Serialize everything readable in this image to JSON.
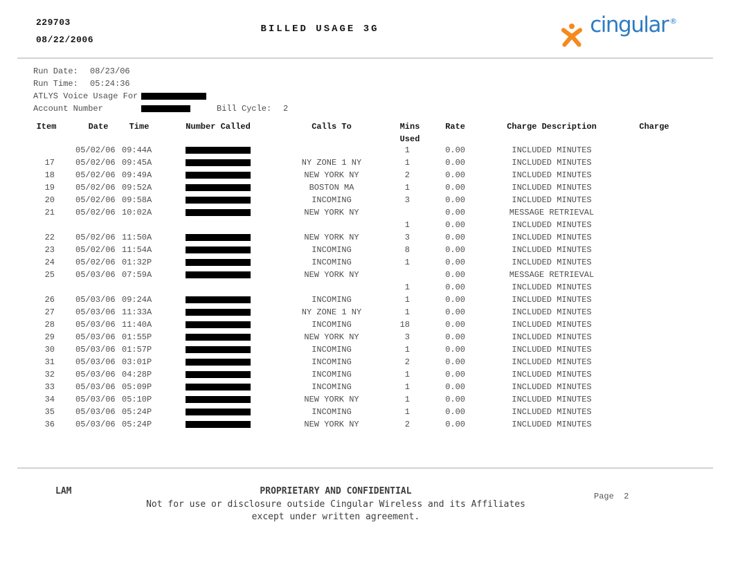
{
  "header": {
    "doc_number": "229703",
    "doc_date": "08/22/2006",
    "title": "BILLED USAGE 3G",
    "brand": {
      "wordmark": "cingular",
      "registered": "®",
      "jack_icon": "cingular-jack-icon",
      "orange": "#f6891e",
      "blue": "#2d7cc1"
    }
  },
  "info": {
    "run_date_label": "Run Date:",
    "run_date": "08/23/06",
    "run_time_label": "Run Time:",
    "run_time": "05:24:36",
    "usage_for_label": "ATLYS Voice Usage For",
    "account_label": "Account Number",
    "bill_cycle_label": "Bill Cycle:",
    "bill_cycle": "2"
  },
  "table": {
    "headers": {
      "item": "Item",
      "date": "Date",
      "time": "Time",
      "number_called": "Number Called",
      "calls_to": "Calls To",
      "mins_line1": "Mins",
      "mins_line2": "Used",
      "rate": "Rate",
      "charge_description": "Charge Description",
      "charge": "Charge"
    },
    "rows": [
      {
        "item": "",
        "date": "05/02/06",
        "time": "09:44A",
        "redacted": true,
        "calls_to": "",
        "mins": "1",
        "rate": "0.00",
        "desc": "INCLUDED MINUTES"
      },
      {
        "item": "17",
        "date": "05/02/06",
        "time": "09:45A",
        "redacted": true,
        "calls_to": "NY ZONE 1 NY",
        "mins": "1",
        "rate": "0.00",
        "desc": "INCLUDED MINUTES"
      },
      {
        "item": "18",
        "date": "05/02/06",
        "time": "09:49A",
        "redacted": true,
        "calls_to": "NEW YORK NY",
        "mins": "2",
        "rate": "0.00",
        "desc": "INCLUDED MINUTES"
      },
      {
        "item": "19",
        "date": "05/02/06",
        "time": "09:52A",
        "redacted": true,
        "calls_to": "BOSTON MA",
        "mins": "1",
        "rate": "0.00",
        "desc": "INCLUDED MINUTES"
      },
      {
        "item": "20",
        "date": "05/02/06",
        "time": "09:58A",
        "redacted": true,
        "calls_to": "INCOMING",
        "mins": "3",
        "rate": "0.00",
        "desc": "INCLUDED MINUTES"
      },
      {
        "item": "21",
        "date": "05/02/06",
        "time": "10:02A",
        "redacted": true,
        "calls_to": "NEW YORK NY",
        "mins": "",
        "rate": "0.00",
        "desc": "MESSAGE RETRIEVAL"
      },
      {
        "item": "",
        "date": "",
        "time": "",
        "redacted": false,
        "calls_to": "",
        "mins": "1",
        "rate": "0.00",
        "desc": "INCLUDED MINUTES"
      },
      {
        "item": "22",
        "date": "05/02/06",
        "time": "11:50A",
        "redacted": true,
        "calls_to": "NEW YORK NY",
        "mins": "3",
        "rate": "0.00",
        "desc": "INCLUDED MINUTES"
      },
      {
        "item": "23",
        "date": "05/02/06",
        "time": "11:54A",
        "redacted": true,
        "calls_to": "INCOMING",
        "mins": "8",
        "rate": "0.00",
        "desc": "INCLUDED MINUTES"
      },
      {
        "item": "24",
        "date": "05/02/06",
        "time": "01:32P",
        "redacted": true,
        "calls_to": "INCOMING",
        "mins": "1",
        "rate": "0.00",
        "desc": "INCLUDED MINUTES"
      },
      {
        "item": "25",
        "date": "05/03/06",
        "time": "07:59A",
        "redacted": true,
        "calls_to": "NEW YORK NY",
        "mins": "",
        "rate": "0.00",
        "desc": "MESSAGE RETRIEVAL"
      },
      {
        "item": "",
        "date": "",
        "time": "",
        "redacted": false,
        "calls_to": "",
        "mins": "1",
        "rate": "0.00",
        "desc": "INCLUDED MINUTES"
      },
      {
        "item": "26",
        "date": "05/03/06",
        "time": "09:24A",
        "redacted": true,
        "calls_to": "INCOMING",
        "mins": "1",
        "rate": "0.00",
        "desc": "INCLUDED MINUTES"
      },
      {
        "item": "27",
        "date": "05/03/06",
        "time": "11:33A",
        "redacted": true,
        "calls_to": "NY ZONE 1 NY",
        "mins": "1",
        "rate": "0.00",
        "desc": "INCLUDED MINUTES"
      },
      {
        "item": "28",
        "date": "05/03/06",
        "time": "11:40A",
        "redacted": true,
        "calls_to": "INCOMING",
        "mins": "18",
        "rate": "0.00",
        "desc": "INCLUDED MINUTES"
      },
      {
        "item": "29",
        "date": "05/03/06",
        "time": "01:55P",
        "redacted": true,
        "calls_to": "NEW YORK NY",
        "mins": "3",
        "rate": "0.00",
        "desc": "INCLUDED MINUTES"
      },
      {
        "item": "30",
        "date": "05/03/06",
        "time": "01:57P",
        "redacted": true,
        "calls_to": "INCOMING",
        "mins": "1",
        "rate": "0.00",
        "desc": "INCLUDED MINUTES"
      },
      {
        "item": "31",
        "date": "05/03/06",
        "time": "03:01P",
        "redacted": true,
        "calls_to": "INCOMING",
        "mins": "2",
        "rate": "0.00",
        "desc": "INCLUDED MINUTES"
      },
      {
        "item": "32",
        "date": "05/03/06",
        "time": "04:28P",
        "redacted": true,
        "calls_to": "INCOMING",
        "mins": "1",
        "rate": "0.00",
        "desc": "INCLUDED MINUTES"
      },
      {
        "item": "33",
        "date": "05/03/06",
        "time": "05:09P",
        "redacted": true,
        "calls_to": "INCOMING",
        "mins": "1",
        "rate": "0.00",
        "desc": "INCLUDED MINUTES"
      },
      {
        "item": "34",
        "date": "05/03/06",
        "time": "05:10P",
        "redacted": true,
        "calls_to": "NEW YORK NY",
        "mins": "1",
        "rate": "0.00",
        "desc": "INCLUDED MINUTES"
      },
      {
        "item": "35",
        "date": "05/03/06",
        "time": "05:24P",
        "redacted": true,
        "calls_to": "INCOMING",
        "mins": "1",
        "rate": "0.00",
        "desc": "INCLUDED MINUTES"
      },
      {
        "item": "36",
        "date": "05/03/06",
        "time": "05:24P",
        "redacted": true,
        "calls_to": "NEW YORK NY",
        "mins": "2",
        "rate": "0.00",
        "desc": "INCLUDED MINUTES"
      }
    ]
  },
  "footer": {
    "initials": "LAM",
    "confidential_title": "PROPRIETARY AND CONFIDENTIAL",
    "confidential_line1": "Not for use or disclosure outside Cingular Wireless and its Affiliates",
    "confidential_line2": "except under written agreement.",
    "page_label": "Page  2"
  }
}
